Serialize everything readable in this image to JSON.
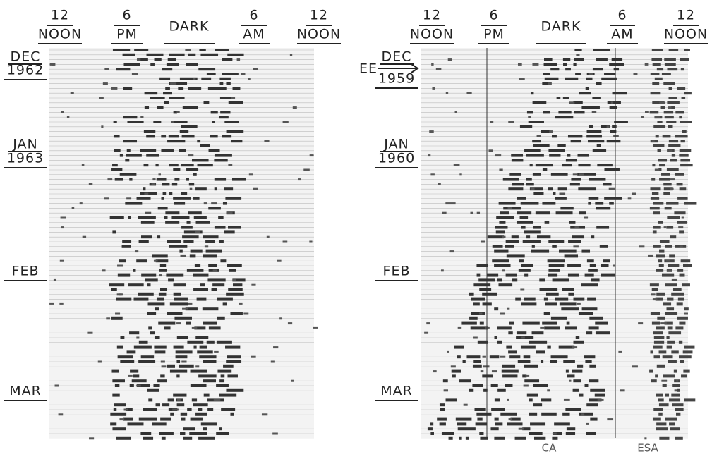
{
  "panels": [
    {
      "header": [
        {
          "lines": [
            "12",
            "NOON"
          ]
        },
        {
          "lines": [
            "6",
            "PM"
          ]
        },
        {
          "lines": [
            "DARK"
          ]
        },
        {
          "lines": [
            "6",
            "AM"
          ]
        },
        {
          "lines": [
            "12",
            "NOON"
          ]
        }
      ],
      "months": [
        {
          "lines": [
            "DEC",
            "1962"
          ]
        },
        {
          "lines": [
            "JAN",
            "1963"
          ]
        },
        {
          "lines": [
            "FEB"
          ]
        },
        {
          "lines": [
            "MAR"
          ]
        }
      ]
    },
    {
      "header": [
        {
          "lines": [
            "12",
            "NOON"
          ]
        },
        {
          "lines": [
            "6",
            "PM"
          ]
        },
        {
          "lines": [
            "DARK"
          ]
        },
        {
          "lines": [
            "6",
            "AM"
          ]
        },
        {
          "lines": [
            "12",
            "NOON"
          ]
        }
      ],
      "marker": "EE",
      "months": [
        {
          "lines": [
            "DEC",
            "1959"
          ]
        },
        {
          "lines": [
            "JAN",
            "1960"
          ]
        },
        {
          "lines": [
            "FEB"
          ]
        },
        {
          "lines": [
            "MAR"
          ]
        }
      ],
      "footer": [
        "CA",
        "ESA"
      ]
    }
  ]
}
